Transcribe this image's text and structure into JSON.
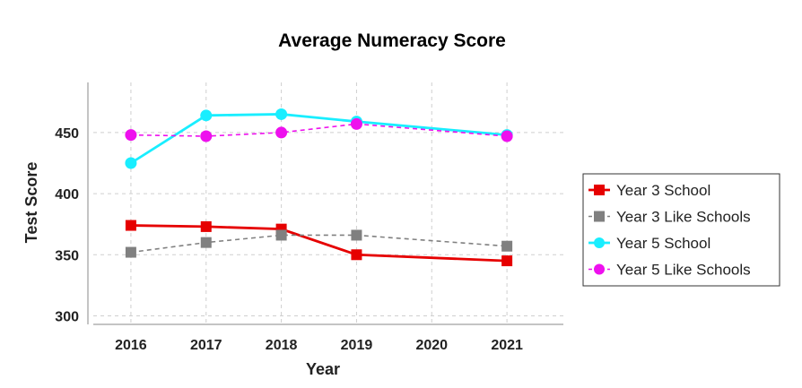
{
  "chart_data": {
    "type": "line",
    "title": "Average Numeracy Score",
    "xlabel": "Year",
    "ylabel": "Test Score",
    "x": [
      2016,
      2017,
      2018,
      2019,
      2020,
      2021
    ],
    "xlim": [
      2015.5,
      2021.75
    ],
    "ylim": [
      293,
      491
    ],
    "yticks": [
      300,
      350,
      400,
      450
    ],
    "grid": true,
    "legend_position": "right",
    "series": [
      {
        "name": "Year 3 School",
        "x": [
          2016,
          2017,
          2018,
          2019,
          2021
        ],
        "values": [
          374,
          373,
          371,
          350,
          345
        ],
        "color": "#e60000",
        "dashed": false,
        "marker": "square"
      },
      {
        "name": "Year 3 Like Schools",
        "x": [
          2016,
          2017,
          2018,
          2019,
          2021
        ],
        "values": [
          352,
          360,
          366,
          366,
          357
        ],
        "color": "#808080",
        "dashed": true,
        "marker": "square"
      },
      {
        "name": "Year 5 School",
        "x": [
          2016,
          2017,
          2018,
          2019,
          2021
        ],
        "values": [
          425,
          464,
          465,
          459,
          448
        ],
        "color": "#19eeff",
        "dashed": false,
        "marker": "circle"
      },
      {
        "name": "Year 5 Like Schools",
        "x": [
          2016,
          2017,
          2018,
          2019,
          2021
        ],
        "values": [
          448,
          447,
          450,
          457,
          447
        ],
        "color": "#ee10ee",
        "dashed": true,
        "marker": "circle"
      }
    ]
  }
}
